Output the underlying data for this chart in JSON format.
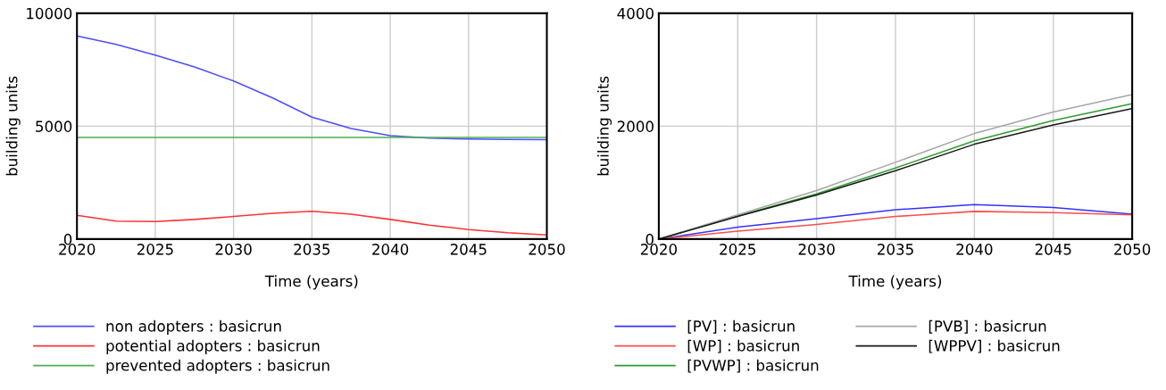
{
  "chart_data": [
    {
      "type": "line",
      "xlabel": "Time (years)",
      "ylabel": "building units",
      "xlim": [
        2020,
        2050
      ],
      "ylim": [
        0,
        10000
      ],
      "xticks": [
        2020,
        2025,
        2030,
        2035,
        2040,
        2045,
        2050
      ],
      "yticks": [
        0,
        5000,
        10000
      ],
      "grid": true,
      "legend": "bottom",
      "line_style": "solid",
      "marker": "none",
      "series": [
        {
          "name": "non adopters : basicrun",
          "color": "#4d4dff",
          "x": [
            2020,
            2022.5,
            2025,
            2027.5,
            2030,
            2032.5,
            2035,
            2037.5,
            2040,
            2042.5,
            2045,
            2047.5,
            2050
          ],
          "values": [
            9000,
            8620,
            8150,
            7620,
            7000,
            6250,
            5400,
            4900,
            4580,
            4470,
            4430,
            4410,
            4400
          ]
        },
        {
          "name": "potential adopters : basicrun",
          "color": "#ff3333",
          "x": [
            2020,
            2022.5,
            2025,
            2027.5,
            2030,
            2032.5,
            2035,
            2037.5,
            2040,
            2042.5,
            2045,
            2047.5,
            2050
          ],
          "values": [
            1050,
            800,
            780,
            870,
            1000,
            1140,
            1230,
            1100,
            870,
            620,
            420,
            280,
            180
          ]
        },
        {
          "name": "prevented adopters : basicrun",
          "color": "#4caf50",
          "x": [
            2020,
            2050
          ],
          "values": [
            4500,
            4500
          ]
        }
      ]
    },
    {
      "type": "line",
      "xlabel": "Time (years)",
      "ylabel": "building units",
      "xlim": [
        2020,
        2050
      ],
      "ylim": [
        0,
        4000
      ],
      "xticks": [
        2020,
        2025,
        2030,
        2035,
        2040,
        2045,
        2050
      ],
      "yticks": [
        0,
        2000,
        4000
      ],
      "grid": true,
      "legend": "bottom",
      "line_style": "solid",
      "marker": "none",
      "series": [
        {
          "name": "[PV] : basicrun",
          "color": "#3333ff",
          "x": [
            2020,
            2025,
            2030,
            2035,
            2040,
            2045,
            2050
          ],
          "values": [
            0,
            210,
            360,
            520,
            610,
            560,
            440
          ]
        },
        {
          "name": "[WP] : basicrun",
          "color": "#ff4d4d",
          "x": [
            2020,
            2025,
            2030,
            2035,
            2040,
            2045,
            2050
          ],
          "values": [
            0,
            140,
            260,
            400,
            490,
            470,
            430
          ]
        },
        {
          "name": "[PVWP] : basicrun",
          "color": "#2e9e2e",
          "x": [
            2020,
            2025,
            2030,
            2035,
            2040,
            2045,
            2050
          ],
          "values": [
            0,
            410,
            800,
            1260,
            1740,
            2100,
            2400
          ]
        },
        {
          "name": "[PVB] : basicrun",
          "color": "#a6a6a6",
          "x": [
            2020,
            2025,
            2030,
            2035,
            2040,
            2045,
            2050
          ],
          "values": [
            0,
            430,
            860,
            1360,
            1870,
            2250,
            2560
          ]
        },
        {
          "name": "[WPPV] : basicrun",
          "color": "#1a1a1a",
          "x": [
            2020,
            2025,
            2030,
            2035,
            2040,
            2045,
            2050
          ],
          "values": [
            0,
            400,
            780,
            1210,
            1680,
            2020,
            2310
          ]
        }
      ]
    }
  ]
}
